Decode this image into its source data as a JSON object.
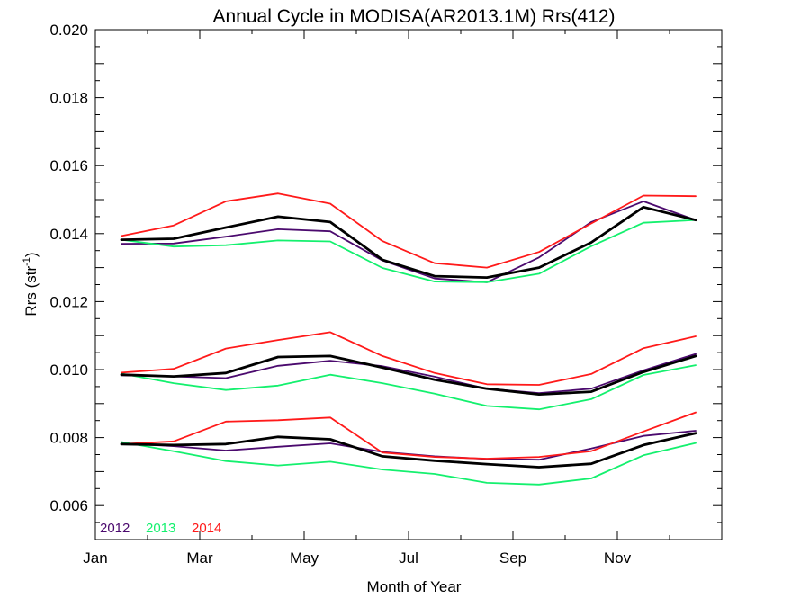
{
  "chart_data": {
    "type": "line",
    "title": "Annual Cycle in MODISA(AR2013.1M) Rrs(412)",
    "xlabel": "Month of Year",
    "ylabel_main": "Rrs (str",
    "ylabel_sup": "-1",
    "ylabel_close": ")",
    "xlim": [
      0,
      12
    ],
    "ylim": [
      0.005,
      0.02
    ],
    "grid": false,
    "legend_position": "bottom-left",
    "x_ticks": [
      {
        "value": 0,
        "label": "Jan"
      },
      {
        "value": 2,
        "label": "Mar"
      },
      {
        "value": 4,
        "label": "May"
      },
      {
        "value": 6,
        "label": "Jul"
      },
      {
        "value": 8,
        "label": "Sep"
      },
      {
        "value": 10,
        "label": "Nov"
      }
    ],
    "y_ticks": [
      {
        "value": 0.006,
        "label": "0.006"
      },
      {
        "value": 0.008,
        "label": "0.008"
      },
      {
        "value": 0.01,
        "label": "0.010"
      },
      {
        "value": 0.012,
        "label": "0.012"
      },
      {
        "value": 0.014,
        "label": "0.014"
      },
      {
        "value": 0.016,
        "label": "0.016"
      },
      {
        "value": 0.018,
        "label": "0.018"
      },
      {
        "value": 0.02,
        "label": "0.020"
      }
    ],
    "x": [
      0.5,
      1.5,
      2.5,
      3.5,
      4.5,
      5.5,
      6.5,
      7.5,
      8.5,
      9.5,
      10.5,
      11.5
    ],
    "groups": [
      {
        "series": [
          {
            "name": "2012",
            "color": "#4b0a6e",
            "width": 1.8,
            "values": [
              0.0137,
              0.01371,
              0.01391,
              0.01413,
              0.01407,
              0.01321,
              0.01268,
              0.01257,
              0.0133,
              0.01434,
              0.01495,
              0.0144
            ]
          },
          {
            "name": "2013",
            "color": "#14f06e",
            "width": 1.8,
            "values": [
              0.01382,
              0.01362,
              0.01366,
              0.0138,
              0.01377,
              0.01299,
              0.01259,
              0.01257,
              0.01282,
              0.01363,
              0.01432,
              0.0144
            ]
          },
          {
            "name": "2014",
            "color": "#ff1a1a",
            "width": 1.8,
            "values": [
              0.01393,
              0.01424,
              0.01495,
              0.01518,
              0.01488,
              0.01378,
              0.01313,
              0.013,
              0.01346,
              0.0143,
              0.01512,
              0.0151
            ]
          },
          {
            "name": "",
            "color": "#000000",
            "width": 2.8,
            "values": [
              0.01382,
              0.01385,
              0.01418,
              0.0145,
              0.01434,
              0.01323,
              0.01275,
              0.01271,
              0.013,
              0.01374,
              0.01478,
              0.0144
            ]
          }
        ]
      },
      {
        "series": [
          {
            "name": "2012",
            "color": "#4b0a6e",
            "width": 1.8,
            "values": [
              0.00983,
              0.0098,
              0.00975,
              0.01011,
              0.01026,
              0.0101,
              0.00979,
              0.00944,
              0.00931,
              0.00944,
              0.00998,
              0.01046
            ]
          },
          {
            "name": "2013",
            "color": "#14f06e",
            "width": 1.8,
            "values": [
              0.00988,
              0.0096,
              0.0094,
              0.00953,
              0.00985,
              0.0096,
              0.00929,
              0.00893,
              0.00883,
              0.00913,
              0.00984,
              0.01013
            ]
          },
          {
            "name": "2014",
            "color": "#ff1a1a",
            "width": 1.8,
            "values": [
              0.00991,
              0.01002,
              0.01062,
              0.01087,
              0.0111,
              0.0104,
              0.0099,
              0.00957,
              0.00955,
              0.00987,
              0.01063,
              0.01098
            ]
          },
          {
            "name": "",
            "color": "#000000",
            "width": 2.8,
            "values": [
              0.00985,
              0.0098,
              0.0099,
              0.01037,
              0.0104,
              0.01006,
              0.0097,
              0.00944,
              0.00927,
              0.00935,
              0.00993,
              0.0104
            ]
          }
        ]
      },
      {
        "series": [
          {
            "name": "2012",
            "color": "#4b0a6e",
            "width": 1.8,
            "values": [
              0.00783,
              0.00775,
              0.00762,
              0.00773,
              0.00783,
              0.00758,
              0.00745,
              0.00737,
              0.00735,
              0.00768,
              0.00805,
              0.0082
            ]
          },
          {
            "name": "2013",
            "color": "#14f06e",
            "width": 1.8,
            "values": [
              0.00787,
              0.0076,
              0.00731,
              0.00718,
              0.00729,
              0.00706,
              0.00693,
              0.00667,
              0.00662,
              0.0068,
              0.00748,
              0.00784
            ]
          },
          {
            "name": "2014",
            "color": "#ff1a1a",
            "width": 1.8,
            "values": [
              0.00781,
              0.00789,
              0.00847,
              0.00851,
              0.00859,
              0.00756,
              0.00743,
              0.00738,
              0.00743,
              0.0076,
              0.00818,
              0.00874
            ]
          },
          {
            "name": "",
            "color": "#000000",
            "width": 2.8,
            "values": [
              0.00781,
              0.00778,
              0.00781,
              0.00802,
              0.00795,
              0.00745,
              0.00732,
              0.00722,
              0.00713,
              0.00723,
              0.00778,
              0.00813
            ]
          }
        ]
      }
    ],
    "legend": [
      {
        "label": "2012",
        "color": "#4b0a6e"
      },
      {
        "label": "2013",
        "color": "#14f06e"
      },
      {
        "label": "2014",
        "color": "#ff1a1a"
      }
    ]
  }
}
